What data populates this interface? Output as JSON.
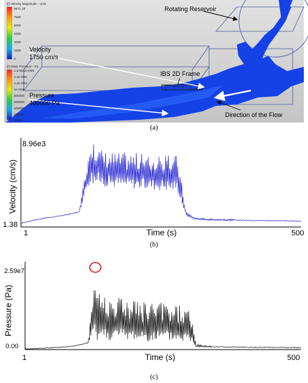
{
  "panel_a": {
    "caption": "(a)",
    "velocity_legend": {
      "title": "[f] Velocity Magnitude - cm/s",
      "ticks": [
        "8677.29",
        "7500",
        "6000",
        "4500",
        "3000",
        "1500",
        "0"
      ]
    },
    "pressure_legend": {
      "title": "[f] Static Pressure - Pa",
      "ticks": [
        "2.57921e+006",
        "1.4e+006",
        "1.2e+006",
        "1e+006",
        "800000",
        "600000",
        "400000",
        "200000",
        "36364"
      ]
    },
    "labels": {
      "velocity_name": "Velocity",
      "velocity_value": "1750 cm/s",
      "pressure_name": "Pressure",
      "pressure_value": "400000 Pa",
      "frame": "IBS 2D Frame",
      "reservoir": "Rotating Reservoir",
      "flow_direction": "Direction of the Flow"
    },
    "colors": {
      "fluid": "#1040e8",
      "background": "#d4d4d4"
    }
  },
  "chart_data": [
    {
      "type": "line",
      "panel": "b",
      "caption": "(b)",
      "xlabel": "Time (s)",
      "ylabel": "Velocity (cm/s)",
      "x_tick_labels": [
        "1",
        "500"
      ],
      "y_tick_labels": [
        "1.38",
        "8.96e3"
      ],
      "xlim": [
        1,
        500
      ],
      "ylim": [
        1.38,
        8960
      ],
      "color": "#2020d0",
      "series": [
        {
          "x": [
            1,
            20,
            40,
            60,
            80,
            105,
            120,
            125,
            135,
            150,
            175,
            200,
            225,
            250,
            280,
            295,
            310,
            330,
            360,
            400,
            450,
            500
          ],
          "y": [
            400,
            650,
            900,
            1050,
            1250,
            1550,
            6000,
            7200,
            6800,
            6200,
            6000,
            5900,
            5800,
            5800,
            5600,
            1400,
            900,
            800,
            750,
            700,
            660,
            620
          ],
          "y_min": [
            400,
            650,
            900,
            1050,
            1250,
            1550,
            4200,
            4400,
            4300,
            4200,
            4100,
            4000,
            3900,
            3800,
            3700,
            1200,
            800,
            700,
            650,
            620,
            600,
            580
          ],
          "y_max": [
            400,
            650,
            900,
            1050,
            1250,
            1550,
            7300,
            8960,
            8400,
            8000,
            7800,
            7900,
            7500,
            7300,
            7600,
            1600,
            1000,
            900,
            850,
            780,
            720,
            680
          ]
        }
      ]
    },
    {
      "type": "line",
      "panel": "c",
      "caption": "(c)",
      "xlabel": "Time (s)",
      "ylabel": "Pressure (Pa)",
      "x_tick_labels": [
        "1",
        "500"
      ],
      "y_tick_labels": [
        "0.00",
        "2.59e7"
      ],
      "xlim": [
        1,
        500
      ],
      "ylim": [
        0,
        25900000
      ],
      "color": "#111111",
      "peak_marker": {
        "x": 128,
        "y": 25900000,
        "color": "#e02020"
      },
      "series": [
        {
          "x": [
            1,
            30,
            60,
            90,
            115,
            122,
            128,
            135,
            150,
            175,
            200,
            225,
            250,
            275,
            300,
            310,
            340,
            380,
            420,
            460,
            500
          ],
          "y": [
            200000,
            400000,
            700000,
            1100000,
            2200000,
            9000000,
            14000000,
            11000000,
            10000000,
            9500000,
            9000000,
            8500000,
            8500000,
            8000000,
            7500000,
            1200000,
            900000,
            800000,
            700000,
            650000,
            600000
          ],
          "y_min": [
            200000,
            400000,
            700000,
            1100000,
            2200000,
            3000000,
            3200000,
            3000000,
            3000000,
            2800000,
            2800000,
            2600000,
            2600000,
            2500000,
            2400000,
            900000,
            700000,
            650000,
            600000,
            560000,
            520000
          ],
          "y_max": [
            200000,
            400000,
            700000,
            1100000,
            2200000,
            17000000,
            25900000,
            18500000,
            17000000,
            17500000,
            16000000,
            15500000,
            15000000,
            14500000,
            13000000,
            1800000,
            1200000,
            1000000,
            900000,
            800000,
            750000
          ]
        }
      ]
    }
  ]
}
